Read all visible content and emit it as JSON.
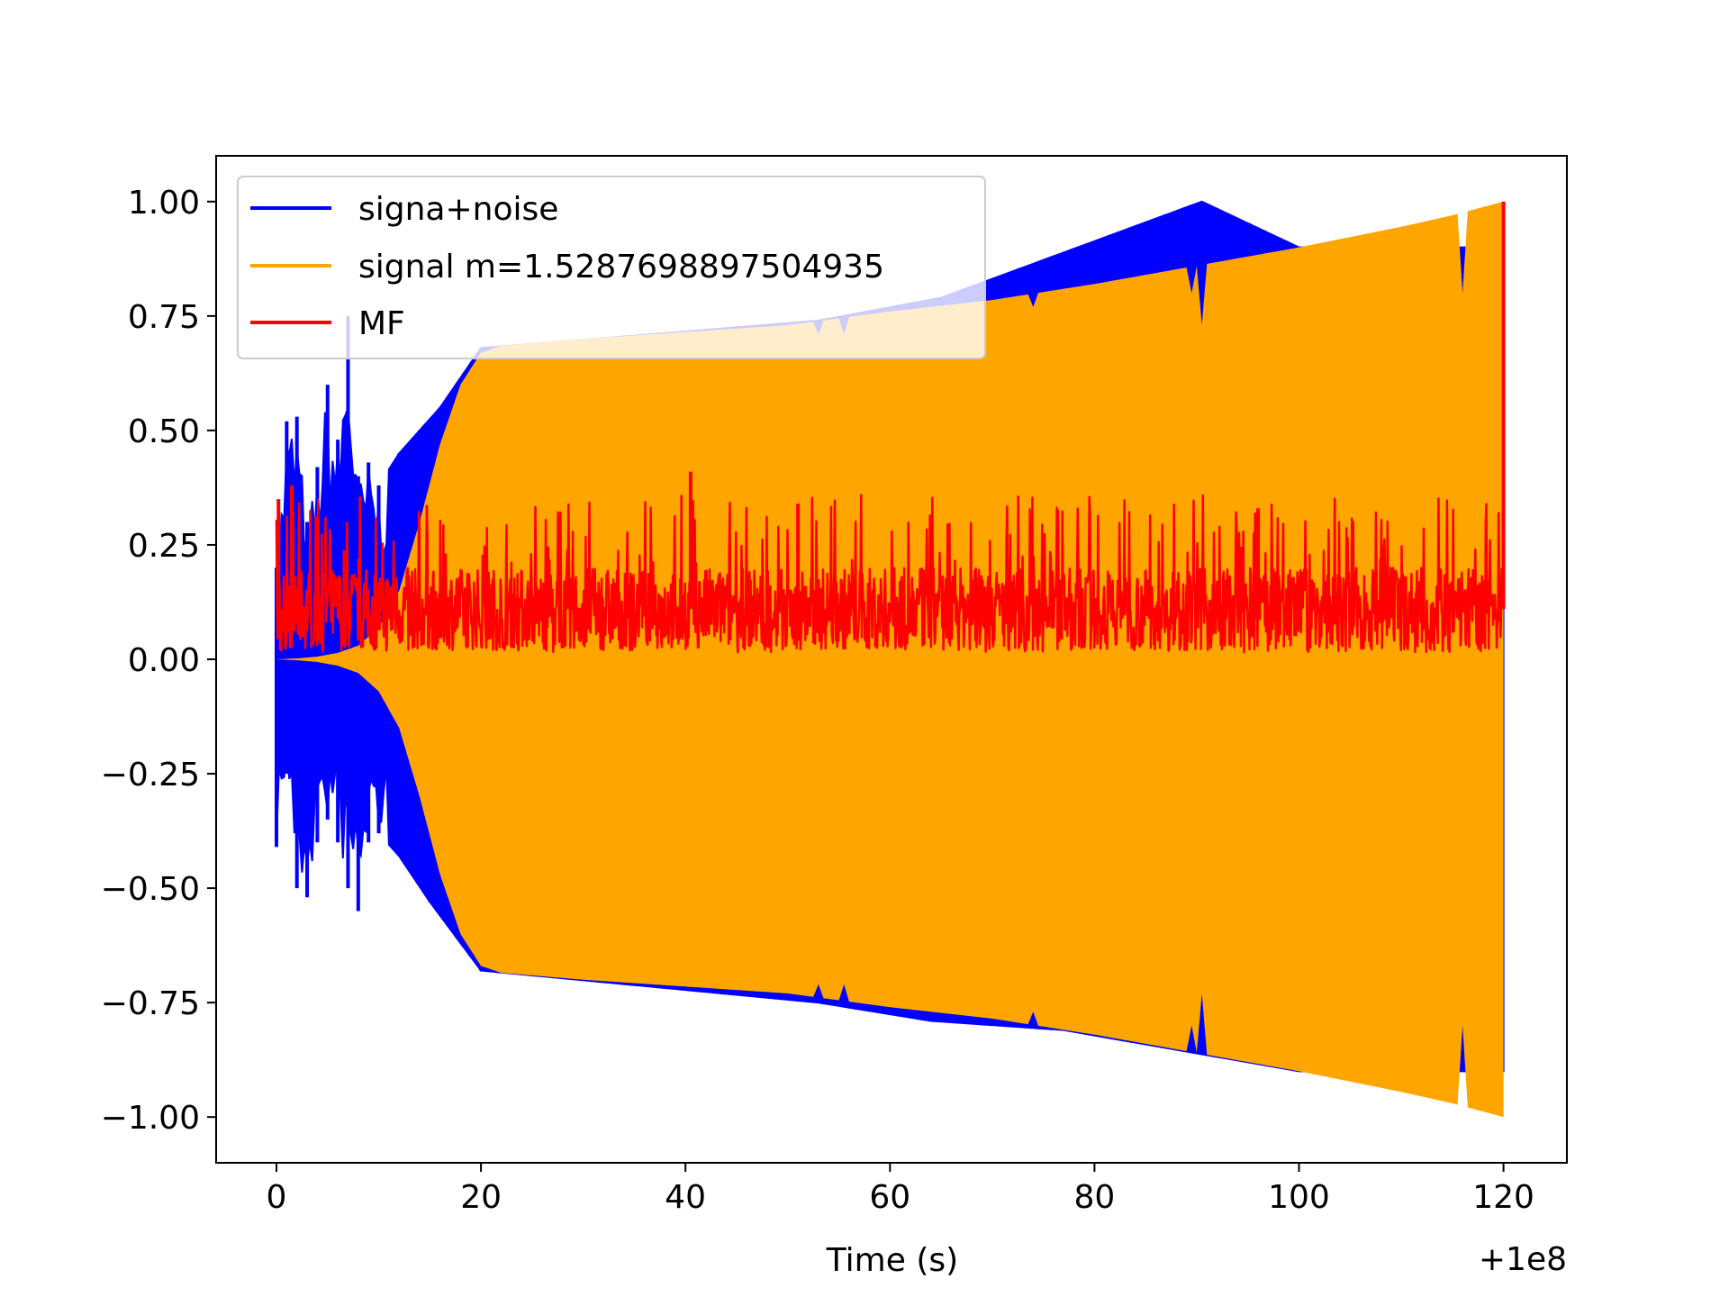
{
  "chart_data": {
    "type": "line",
    "title": "",
    "xlabel": "Time (s)",
    "ylabel": "",
    "x_offset_label": "+1e8",
    "xlim": [
      -5.9,
      126.2
    ],
    "ylim": [
      -1.1,
      1.1
    ],
    "x_ticks": [
      0,
      20,
      40,
      60,
      80,
      100,
      120
    ],
    "x_tick_labels": [
      "0",
      "20",
      "40",
      "60",
      "80",
      "100",
      "120"
    ],
    "y_ticks": [
      1.0,
      0.75,
      0.5,
      0.25,
      0.0,
      -0.25,
      -0.5,
      -0.75,
      -1.0
    ],
    "y_tick_labels": [
      "1.00",
      "0.75",
      "0.50",
      "0.25",
      "0.00",
      "−0.25",
      "−0.50",
      "−0.75",
      "−1.00"
    ],
    "grid": false,
    "legend_position": "upper-left",
    "series": [
      {
        "name": "signa+noise",
        "color": "#0000ff",
        "upper_envelope": [
          [
            0,
            0.2
          ],
          [
            1,
            0.52
          ],
          [
            2,
            0.53
          ],
          [
            3,
            0.3
          ],
          [
            4,
            0.42
          ],
          [
            5,
            0.6
          ],
          [
            6,
            0.48
          ],
          [
            7,
            0.75
          ],
          [
            8,
            0.4
          ],
          [
            9,
            0.43
          ],
          [
            10,
            0.38
          ],
          [
            12,
            0.45
          ],
          [
            14,
            0.5
          ],
          [
            16,
            0.55
          ],
          [
            20,
            0.68
          ],
          [
            53,
            0.74
          ],
          [
            65,
            0.79
          ],
          [
            90.5,
            1.0
          ],
          [
            100,
            0.9
          ]
        ],
        "lower_envelope": [
          [
            0,
            -0.41
          ],
          [
            1,
            -0.25
          ],
          [
            2,
            -0.5
          ],
          [
            3,
            -0.52
          ],
          [
            4,
            -0.4
          ],
          [
            5,
            -0.35
          ],
          [
            6,
            -0.4
          ],
          [
            7,
            -0.5
          ],
          [
            8,
            -0.55
          ],
          [
            9,
            -0.4
          ],
          [
            10,
            -0.38
          ],
          [
            12,
            -0.43
          ],
          [
            15,
            -0.53
          ],
          [
            20,
            -0.68
          ],
          [
            53,
            -0.75
          ],
          [
            64,
            -0.79
          ],
          [
            77,
            -0.81
          ],
          [
            100,
            -0.9
          ]
        ]
      },
      {
        "name": "signal m=1.5287698897504935",
        "color": "#ffa500",
        "amplitude_envelope": [
          [
            0,
            0.0
          ],
          [
            2,
            0.002
          ],
          [
            4,
            0.006
          ],
          [
            6,
            0.014
          ],
          [
            8,
            0.03
          ],
          [
            10,
            0.07
          ],
          [
            12,
            0.15
          ],
          [
            14,
            0.3
          ],
          [
            16,
            0.47
          ],
          [
            18,
            0.6
          ],
          [
            20,
            0.67
          ],
          [
            22,
            0.685
          ],
          [
            30,
            0.7
          ],
          [
            40,
            0.715
          ],
          [
            50,
            0.73
          ],
          [
            60,
            0.76
          ],
          [
            70,
            0.785
          ],
          [
            80,
            0.82
          ],
          [
            90,
            0.86
          ],
          [
            100,
            0.9
          ],
          [
            110,
            0.945
          ],
          [
            115,
            0.97
          ],
          [
            120,
            1.0
          ]
        ],
        "notches": [
          [
            53,
            0.71
          ],
          [
            55.5,
            0.71
          ],
          [
            74,
            0.77
          ],
          [
            89.5,
            0.8
          ],
          [
            90.5,
            0.73
          ],
          [
            116,
            0.8
          ]
        ]
      },
      {
        "name": "MF",
        "color": "#ff0000",
        "mean": 0.11,
        "min": 0.0,
        "typical_max": 0.3,
        "peaks": [
          [
            0.2,
            0.35
          ],
          [
            1.5,
            0.38
          ],
          [
            40.5,
            0.41
          ],
          [
            51,
            0.34
          ],
          [
            96,
            0.33
          ],
          [
            120,
            1.0
          ]
        ]
      }
    ]
  }
}
